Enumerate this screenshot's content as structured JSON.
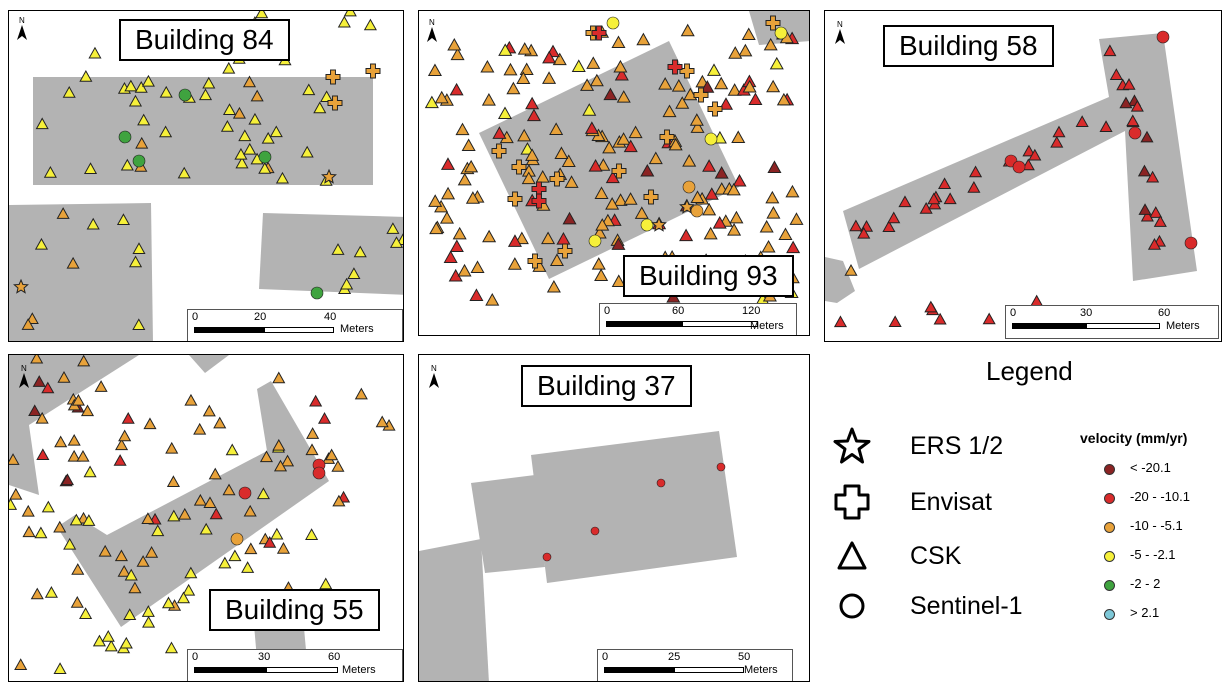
{
  "colors": {
    "building": "#b3b3b3",
    "class_lt_minus20": "#8b2323",
    "class_minus20_minus10": "#d92b2b",
    "class_minus10_minus5": "#e8a23a",
    "class_minus5_minus2": "#f6f03a",
    "class_minus2_2": "#3fa33f",
    "class_gt_2": "#7ec8d8"
  },
  "panels": [
    {
      "id": "b84",
      "title": "Building 84",
      "scale": {
        "ticks": [
          "0",
          "20",
          "40"
        ],
        "unit": "Meters"
      }
    },
    {
      "id": "b93",
      "title": "Building 93",
      "scale": {
        "ticks": [
          "0",
          "60",
          "120"
        ],
        "unit": "Meters"
      }
    },
    {
      "id": "b58",
      "title": "Building 58",
      "scale": {
        "ticks": [
          "0",
          "30",
          "60"
        ],
        "unit": "Meters"
      }
    },
    {
      "id": "b55",
      "title": "Building 55",
      "scale": {
        "ticks": [
          "0",
          "30",
          "60"
        ],
        "unit": "Meters"
      }
    },
    {
      "id": "b37",
      "title": "Building 37",
      "scale": {
        "ticks": [
          "0",
          "25",
          "50"
        ],
        "unit": "Meters"
      }
    }
  ],
  "north_label": "N",
  "legend": {
    "title": "Legend",
    "sensors": [
      {
        "label": "ERS 1/2",
        "icon": "star-icon"
      },
      {
        "label": "Envisat",
        "icon": "cross-icon"
      },
      {
        "label": "CSK",
        "icon": "triangle-icon"
      },
      {
        "label": "Sentinel-1",
        "icon": "circle-icon"
      }
    ],
    "velocity_title": "velocity (mm/yr)",
    "velocity_classes": [
      {
        "label": "< -20.1",
        "color": "#8b2323"
      },
      {
        "label": "-20 - -10.1",
        "color": "#d92b2b"
      },
      {
        "label": "-10 - -5.1",
        "color": "#e8a23a"
      },
      {
        "label": "-5 - -2.1",
        "color": "#f6f03a"
      },
      {
        "label": "-2 - 2",
        "color": "#3fa33f"
      },
      {
        "label": "> 2.1",
        "color": "#7ec8d8"
      }
    ]
  }
}
